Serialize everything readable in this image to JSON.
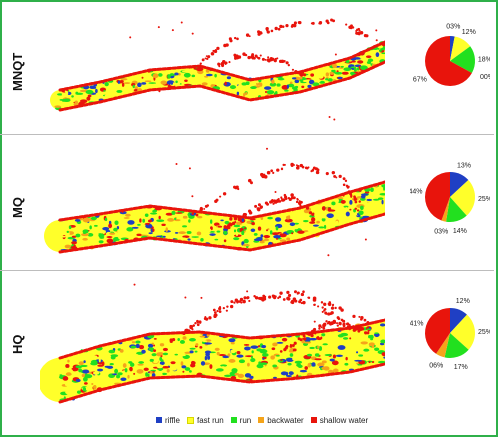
{
  "colors": {
    "riffle": "#1f3fc4",
    "fast_run": "#ffff2a",
    "run": "#22e01f",
    "backwater": "#f5a41a",
    "shallow_water": "#e8140c",
    "frame": "#2fb04a"
  },
  "chart_data": {
    "type": "pie",
    "categories": [
      "riffle",
      "fast run",
      "run",
      "backwater",
      "shallow water"
    ],
    "panels": [
      {
        "label": "MNQT",
        "values": [
          3,
          12,
          18,
          0,
          67
        ],
        "value_labels": [
          "03%",
          "12%",
          "18%",
          "00%",
          "67%"
        ]
      },
      {
        "label": "MQ",
        "values": [
          13,
          25,
          14,
          3,
          44
        ],
        "value_labels": [
          "13%",
          "25%",
          "14%",
          "03%",
          "44%"
        ]
      },
      {
        "label": "HQ",
        "values": [
          12,
          25,
          17,
          6,
          41
        ],
        "value_labels": [
          "12%",
          "25%",
          "17%",
          "06%",
          "41%"
        ]
      }
    ]
  },
  "legend": {
    "items": [
      "riffle",
      "fast run",
      "run",
      "backwater",
      "shallow water"
    ]
  }
}
